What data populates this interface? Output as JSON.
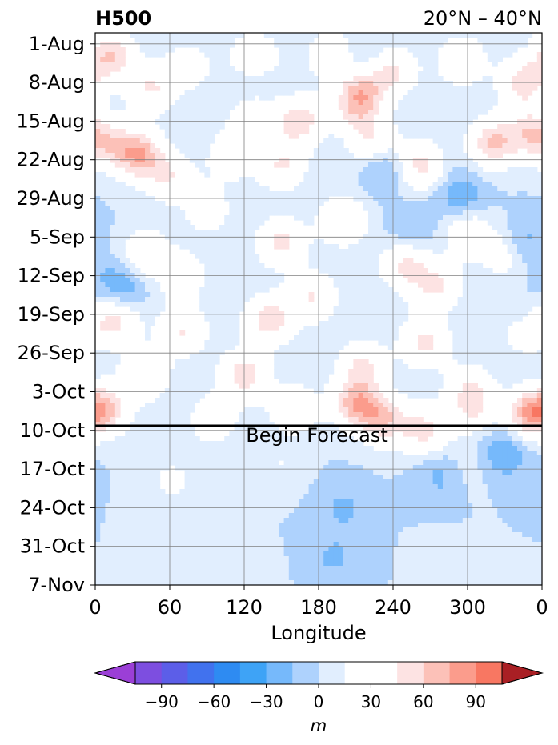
{
  "chart_data": {
    "type": "heatmap",
    "title_left": "H500",
    "title_right": "20°N – 40°N",
    "xlabel": "Longitude",
    "ylabel": "",
    "x_ticks": [
      "0",
      "60",
      "120",
      "180",
      "240",
      "300",
      "0"
    ],
    "x_tick_values": [
      0,
      60,
      120,
      180,
      240,
      300,
      360
    ],
    "y_ticks": [
      "1-Aug",
      "8-Aug",
      "15-Aug",
      "22-Aug",
      "29-Aug",
      "5-Sep",
      "12-Sep",
      "19-Sep",
      "26-Sep",
      "3-Oct",
      "10-Oct",
      "17-Oct",
      "24-Oct",
      "31-Oct",
      "7-Nov"
    ],
    "xlim": [
      0,
      360
    ],
    "ylim": [
      "7-Nov",
      "1-Aug"
    ],
    "grid": true,
    "forecast_start": "10-Oct",
    "forecast_label": "Begin Forecast",
    "colorbar": {
      "label": "m",
      "ticks": [
        "−90",
        "−60",
        "−30",
        "0",
        "30",
        "60",
        "90"
      ],
      "tick_values": [
        -90,
        -60,
        -30,
        0,
        30,
        60,
        90
      ],
      "levels": [
        -105,
        -90,
        -75,
        -60,
        -45,
        -30,
        -15,
        0,
        15,
        30,
        45,
        60,
        75,
        90,
        105
      ],
      "extend": "both",
      "colors": [
        "#9b3fd6",
        "#7d4ee0",
        "#5c5ee8",
        "#4172ee",
        "#2e8bf2",
        "#3ea3f6",
        "#76b9fb",
        "#aed2fd",
        "#e1eefe",
        "#ffffff",
        "#ffffff",
        "#fde3e3",
        "#fcc1b8",
        "#fb9c8c",
        "#f87762",
        "#ef5a45",
        "#de4535",
        "#cb382f",
        "#b72929",
        "#a91f24"
      ]
    },
    "blobs": [
      {
        "lon": 12,
        "day": 2,
        "v": 60
      },
      {
        "lon": 45,
        "day": 8,
        "v": 45
      },
      {
        "lon": 75,
        "day": 4,
        "v": 30
      },
      {
        "lon": 128,
        "day": 3,
        "v": 50
      },
      {
        "lon": 190,
        "day": 2,
        "v": 40
      },
      {
        "lon": 215,
        "day": 8,
        "v": 55
      },
      {
        "lon": 240,
        "day": 5,
        "v": 45
      },
      {
        "lon": 295,
        "day": 3,
        "v": 40
      },
      {
        "lon": 345,
        "day": 7,
        "v": 55
      },
      {
        "lon": 128,
        "day": 12,
        "v": 50
      },
      {
        "lon": 165,
        "day": 14,
        "v": 55
      },
      {
        "lon": 210,
        "day": 12,
        "v": 40
      },
      {
        "lon": 10,
        "day": 18,
        "v": 40
      },
      {
        "lon": 35,
        "day": 20,
        "v": 70
      },
      {
        "lon": 60,
        "day": 24,
        "v": 40
      },
      {
        "lon": 110,
        "day": 20,
        "v": 35
      },
      {
        "lon": 150,
        "day": 22,
        "v": 45
      },
      {
        "lon": 225,
        "day": 18,
        "v": 45
      },
      {
        "lon": 260,
        "day": 22,
        "v": 55
      },
      {
        "lon": 320,
        "day": 18,
        "v": 60
      },
      {
        "lon": 350,
        "day": 16,
        "v": 45
      },
      {
        "lon": 90,
        "day": 30,
        "v": 30
      },
      {
        "lon": 150,
        "day": 36,
        "v": 50
      },
      {
        "lon": 200,
        "day": 32,
        "v": 45
      },
      {
        "lon": 250,
        "day": 40,
        "v": 50
      },
      {
        "lon": 300,
        "day": 34,
        "v": 40
      },
      {
        "lon": 330,
        "day": 38,
        "v": 30
      },
      {
        "lon": 40,
        "day": 38,
        "v": 40
      },
      {
        "lon": 70,
        "day": 42,
        "v": 35
      },
      {
        "lon": 15,
        "day": 50,
        "v": 55
      },
      {
        "lon": 70,
        "day": 52,
        "v": 45
      },
      {
        "lon": 140,
        "day": 50,
        "v": 55
      },
      {
        "lon": 175,
        "day": 46,
        "v": 45
      },
      {
        "lon": 120,
        "day": 60,
        "v": 55
      },
      {
        "lon": 215,
        "day": 58,
        "v": 45
      },
      {
        "lon": 265,
        "day": 54,
        "v": 50
      },
      {
        "lon": 345,
        "day": 52,
        "v": 45
      },
      {
        "lon": 40,
        "day": 60,
        "v": 40
      },
      {
        "lon": 210,
        "day": 65,
        "v": 65
      },
      {
        "lon": 232,
        "day": 68,
        "v": 55
      },
      {
        "lon": 265,
        "day": 70,
        "v": 50
      },
      {
        "lon": 305,
        "day": 66,
        "v": 40
      },
      {
        "lon": 350,
        "day": 67,
        "v": 70
      },
      {
        "lon": 10,
        "day": 66,
        "v": 50
      },
      {
        "lon": 160,
        "day": 66,
        "v": 40
      },
      {
        "lon": 95,
        "day": 68,
        "v": 35
      },
      {
        "lon": 300,
        "day": 62,
        "v": 30
      },
      {
        "lon": 275,
        "day": 44,
        "v": 45
      },
      {
        "lon": 20,
        "day": 44,
        "v": -35
      },
      {
        "lon": 128,
        "day": 8,
        "v": -35
      },
      {
        "lon": 235,
        "day": 22,
        "v": -35
      },
      {
        "lon": 295,
        "day": 28,
        "v": -30
      },
      {
        "lon": 345,
        "day": 36,
        "v": -25
      },
      {
        "lon": 215,
        "day": 4,
        "v": -20
      },
      {
        "lon": 345,
        "day": 51,
        "v": -25
      },
      {
        "lon": 255,
        "day": 34,
        "v": -20
      },
      {
        "lon": 62,
        "day": 79,
        "v": 20
      },
      {
        "lon": 150,
        "day": 76,
        "v": 15
      },
      {
        "lon": 295,
        "day": 77,
        "v": 15
      },
      {
        "lon": 330,
        "day": 74,
        "v": -30
      },
      {
        "lon": 280,
        "day": 78,
        "v": -25
      },
      {
        "lon": 200,
        "day": 84,
        "v": -18
      },
      {
        "lon": 193,
        "day": 93,
        "v": -18
      },
      {
        "lon": 285,
        "day": 95,
        "v": 15
      },
      {
        "lon": 120,
        "day": 97,
        "v": 15
      }
    ]
  }
}
